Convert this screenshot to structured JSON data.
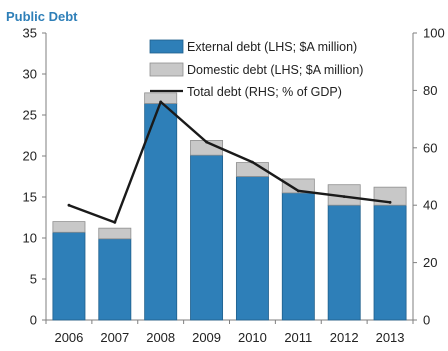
{
  "chart_data": {
    "type": "bar",
    "title": "Public Debt",
    "categories": [
      "2006",
      "2007",
      "2008",
      "2009",
      "2010",
      "2011",
      "2012",
      "2013"
    ],
    "series": [
      {
        "name": "External debt (LHS; $A million)",
        "kind": "stacked-bar",
        "axis": "left",
        "color": "#2e7fb8",
        "values": [
          10.7,
          9.9,
          26.4,
          20.1,
          17.5,
          15.5,
          14.0,
          14.0
        ]
      },
      {
        "name": "Domestic debt (LHS; $A million)",
        "kind": "stacked-bar",
        "axis": "left",
        "color": "#c8c8c8",
        "values": [
          1.3,
          1.3,
          1.3,
          1.8,
          1.7,
          1.7,
          2.5,
          2.2
        ]
      },
      {
        "name": "Total debt (RHS; % of GDP)",
        "kind": "line",
        "axis": "right",
        "color": "#1a1a1a",
        "values": [
          40,
          34,
          76,
          62,
          55,
          45,
          43,
          41
        ]
      }
    ],
    "y_left": {
      "min": 0,
      "max": 35,
      "ticks": [
        "0",
        "5",
        "10",
        "15",
        "20",
        "25",
        "30",
        "35"
      ]
    },
    "y_right": {
      "min": 0,
      "max": 100,
      "ticks": [
        "0",
        "20",
        "40",
        "60",
        "80",
        "100"
      ]
    },
    "grid": false,
    "legend_position": "top-right",
    "title_color": "#2e7fb8"
  }
}
